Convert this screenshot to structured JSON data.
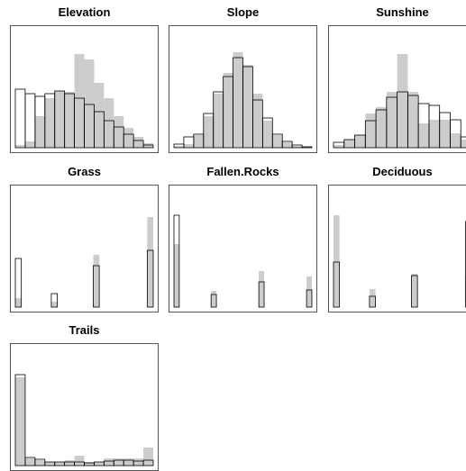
{
  "style": {
    "bar_fill": "#cccccc",
    "outline_color": "#000000",
    "frame_color": "#555555"
  },
  "chart_data": [
    {
      "type": "bar",
      "title": "Elevation",
      "ylim": [
        0,
        130
      ],
      "series": [
        {
          "values": [
            3,
            7,
            35,
            55,
            63,
            62,
            104,
            98,
            72,
            55,
            35,
            22,
            12,
            5
          ]
        },
        {
          "values": [
            65,
            60,
            57,
            60,
            63,
            60,
            55,
            48,
            40,
            30,
            23,
            15,
            8,
            3
          ]
        }
      ]
    },
    {
      "type": "bar",
      "title": "Slope",
      "ylim": [
        0,
        130
      ],
      "series": [
        {
          "values": [
            2,
            4,
            14,
            35,
            60,
            83,
            106,
            92,
            60,
            30,
            14,
            6,
            2,
            1
          ]
        },
        {
          "values": [
            4,
            12,
            15,
            38,
            62,
            79,
            100,
            90,
            53,
            33,
            15,
            7,
            3,
            1
          ]
        }
      ]
    },
    {
      "type": "bar",
      "title": "Sunshine",
      "ylim": [
        0,
        130
      ],
      "series": [
        {
          "values": [
            3,
            9,
            14,
            38,
            45,
            62,
            104,
            62,
            27,
            31,
            31,
            16,
            9
          ]
        },
        {
          "values": [
            6,
            9,
            14,
            30,
            42,
            56,
            62,
            58,
            49,
            47,
            39,
            31,
            12
          ]
        }
      ]
    },
    {
      "type": "bar",
      "title": "Grass",
      "ylim": [
        0,
        130
      ],
      "series": [
        {
          "values": [
            10,
            0,
            0,
            0,
            0,
            0,
            6,
            0,
            0,
            0,
            0,
            0,
            0,
            58,
            0,
            0,
            0,
            0,
            0,
            0,
            0,
            0,
            100
          ]
        },
        {
          "values": [
            54,
            0,
            0,
            0,
            0,
            0,
            15,
            0,
            0,
            0,
            0,
            0,
            0,
            46,
            0,
            0,
            0,
            0,
            0,
            0,
            0,
            0,
            63
          ]
        }
      ]
    },
    {
      "type": "bar",
      "title": "Fallen.Rocks",
      "ylim": [
        0,
        130
      ],
      "series": [
        {
          "values": [
            70,
            0,
            0,
            0,
            0,
            0,
            0,
            18,
            0,
            0,
            0,
            0,
            0,
            0,
            0,
            0,
            40,
            0,
            0,
            0,
            0,
            0,
            0,
            0,
            0,
            34
          ]
        },
        {
          "values": [
            102,
            0,
            0,
            0,
            0,
            0,
            0,
            14,
            0,
            0,
            0,
            0,
            0,
            0,
            0,
            0,
            28,
            0,
            0,
            0,
            0,
            0,
            0,
            0,
            0,
            19
          ]
        }
      ]
    },
    {
      "type": "bar",
      "title": "Deciduous",
      "ylim": [
        0,
        130
      ],
      "series": [
        {
          "values": [
            102,
            0,
            0,
            0,
            0,
            0,
            20,
            0,
            0,
            0,
            0,
            0,
            0,
            37,
            0,
            0,
            0,
            0,
            0,
            0,
            0,
            0,
            35
          ]
        },
        {
          "values": [
            50,
            0,
            0,
            0,
            0,
            0,
            12,
            0,
            0,
            0,
            0,
            0,
            0,
            35,
            0,
            0,
            0,
            0,
            0,
            0,
            0,
            0,
            95
          ]
        }
      ]
    },
    {
      "type": "bar",
      "title": "Trails",
      "ylim": [
        0,
        130
      ],
      "series": [
        {
          "values": [
            98,
            8,
            6,
            4,
            4,
            6,
            11,
            4,
            4,
            8,
            8,
            8,
            8,
            20
          ]
        },
        {
          "values": [
            101,
            9,
            7,
            4,
            4,
            4,
            4,
            3,
            4,
            5,
            6,
            6,
            5,
            6
          ]
        }
      ]
    }
  ]
}
